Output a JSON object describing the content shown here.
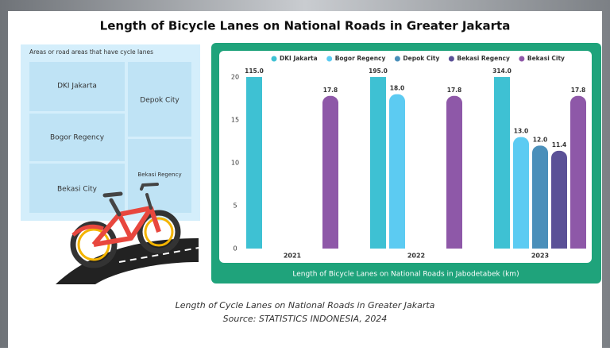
{
  "chart_data": {
    "type": "bar",
    "title": "Length of Bicycle Lanes on National Roads in Greater Jakarta",
    "x_label": "Length of Bicycle Lanes on National Roads in Jabodetabek (km)",
    "categories": [
      "2021",
      "2022",
      "2023"
    ],
    "series": [
      {
        "name": "DKI Jakarta",
        "color": "#3ec1d3",
        "values": [
          115,
          195,
          314
        ],
        "value_labels": [
          "115.0",
          "195.0",
          "314.0"
        ]
      },
      {
        "name": "Bogor Regency",
        "color": "#5ccbf2",
        "values": [
          null,
          18,
          13
        ],
        "value_labels": [
          null,
          "18.0",
          "13.0"
        ]
      },
      {
        "name": "Depok City",
        "color": "#4a8fba",
        "values": [
          null,
          null,
          12
        ],
        "value_labels": [
          null,
          null,
          "12.0"
        ]
      },
      {
        "name": "Bekasi Regency",
        "color": "#5b5197",
        "values": [
          null,
          null,
          11.4
        ]
      },
      {
        "name": "Bekasi City",
        "color": "#8e58a8",
        "values": [
          17.8,
          17.8,
          17.8
        ]
      }
    ],
    "ylim": [
      0,
      20
    ],
    "yticks": [
      0,
      5,
      10,
      15,
      20
    ],
    "grid": false,
    "legend": "top"
  },
  "area_panel": {
    "heading": "Areas or road areas that have cycle lanes",
    "areas": [
      "DKI Jakarta",
      "Bogor Regency",
      "Bekasi City",
      "Depok City",
      "Bekasi Regency"
    ]
  },
  "caption": {
    "line1": "Length of Cycle Lanes on National Roads in Greater Jakarta",
    "line2": "Source: STATISTICS INDONESIA, 2024"
  }
}
